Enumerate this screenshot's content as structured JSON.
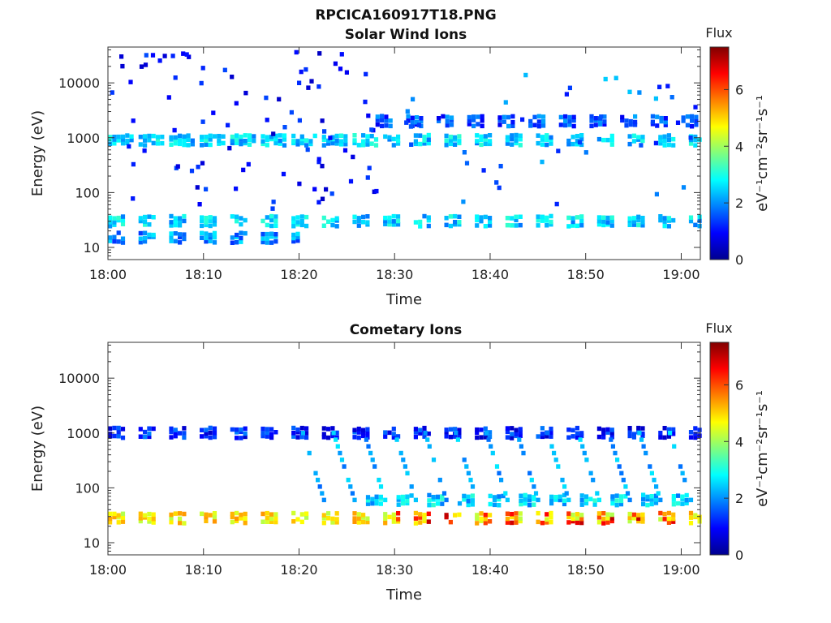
{
  "figure": {
    "title": "RPCICA160917T18.PNG"
  },
  "colorbar": {
    "title": "Flux",
    "label": "eV⁻¹cm⁻²sr⁻¹s⁻¹",
    "range": [
      0,
      7.5
    ],
    "ticks": [
      "0",
      "2",
      "4",
      "6"
    ],
    "colormap": "jet"
  },
  "chart_data": [
    {
      "type": "heatmap",
      "title": "Solar Wind Ions",
      "xlabel": "Time",
      "ylabel": "Energy (eV)",
      "xlim": [
        "18:00",
        "19:02"
      ],
      "ylim": [
        6,
        45000
      ],
      "yscale": "log",
      "xticks": [
        "18:00",
        "18:10",
        "18:20",
        "18:30",
        "18:40",
        "18:50",
        "19:00"
      ],
      "yticks": [
        "10",
        "100",
        "1000",
        "10000"
      ],
      "bands": [
        {
          "energy": 900,
          "flux": 2.5,
          "t_start": 0,
          "t_end": 62,
          "pattern": "continuous bursts every ~3 min, cyan/green"
        },
        {
          "energy": 30,
          "flux": 2.5,
          "t_start": 0,
          "t_end": 62,
          "pattern": "bursts every ~3 min, cyan/green"
        },
        {
          "energy": 2000,
          "flux": 1.5,
          "t_start": 28,
          "t_end": 62,
          "pattern": "sparse upper band"
        },
        {
          "energy": 15,
          "flux": 2.0,
          "t_start": 0,
          "t_end": 20,
          "pattern": "occasional low-energy spots"
        }
      ],
      "scatter_range": {
        "energy": [
          50,
          40000
        ],
        "flux": [
          0.5,
          1.5
        ],
        "t_start": 0,
        "t_end": 28
      }
    },
    {
      "type": "heatmap",
      "title": "Cometary Ions",
      "xlabel": "Time",
      "ylabel": "Energy (eV)",
      "xlim": [
        "18:00",
        "19:02"
      ],
      "ylim": [
        6,
        45000
      ],
      "yscale": "log",
      "xticks": [
        "18:00",
        "18:10",
        "18:20",
        "18:30",
        "18:40",
        "18:50",
        "19:00"
      ],
      "yticks": [
        "10",
        "100",
        "1000",
        "10000"
      ],
      "bands": [
        {
          "energy": 28,
          "flux": 4.8,
          "t_start": 0,
          "t_end": 62,
          "pattern": "strong yellow/orange bursts every ~3 min, peaks red after 18:30"
        },
        {
          "energy": 1000,
          "flux": 1.2,
          "t_start": 0,
          "t_end": 62,
          "pattern": "blue dashes every ~3 min"
        },
        {
          "energy": 60,
          "flux": 2.5,
          "t_start": 27,
          "t_end": 62,
          "pattern": "thin cyan row"
        }
      ],
      "dispersion_traces": {
        "energy_from": 1000,
        "energy_to": 60,
        "flux": 2.2,
        "t_start": 22,
        "t_end": 62,
        "period_min": 3.2
      }
    }
  ]
}
